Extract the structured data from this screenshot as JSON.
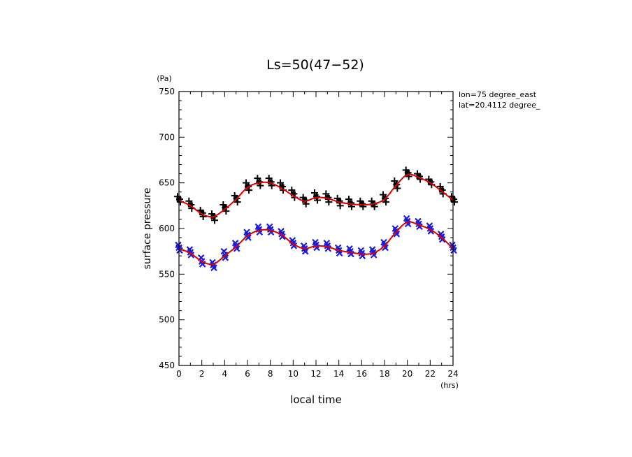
{
  "chart_data": {
    "type": "scatter",
    "title": "Ls=50(47−52)",
    "xlabel": "local time",
    "ylabel": "surface pressure",
    "x_unit": "(hrs)",
    "y_unit": "(Pa)",
    "xlim": [
      0,
      24
    ],
    "ylim": [
      450,
      750
    ],
    "xticks": [
      0,
      2,
      4,
      6,
      8,
      10,
      12,
      14,
      16,
      18,
      20,
      22,
      24
    ],
    "yticks": [
      450,
      500,
      550,
      600,
      650,
      700,
      750
    ],
    "grid": false,
    "annotations": [
      "lon=75 degree_east",
      "lat=20.4112 degree_"
    ],
    "x": [
      0,
      1,
      2,
      3,
      4,
      5,
      6,
      7,
      8,
      9,
      10,
      11,
      12,
      13,
      14,
      15,
      16,
      17,
      18,
      19,
      20,
      21,
      22,
      23,
      24
    ],
    "series": [
      {
        "marker": "square+plus",
        "color": "#000000",
        "values": [
          632,
          626,
          617,
          613,
          623,
          633,
          646,
          651,
          651,
          646,
          638,
          631,
          635,
          634,
          630,
          628,
          627,
          627,
          633,
          648,
          661,
          657,
          651,
          642,
          632
        ],
        "spread": [
          [
            629,
            635
          ],
          [
            622,
            630
          ],
          [
            613,
            620
          ],
          [
            609,
            616
          ],
          [
            619,
            626
          ],
          [
            629,
            636
          ],
          [
            642,
            650
          ],
          [
            647,
            655
          ],
          [
            647,
            655
          ],
          [
            642,
            650
          ],
          [
            634,
            642
          ],
          [
            627,
            634
          ],
          [
            631,
            639
          ],
          [
            629,
            638
          ],
          [
            625,
            633
          ],
          [
            624,
            632
          ],
          [
            624,
            630
          ],
          [
            624,
            630
          ],
          [
            629,
            637
          ],
          [
            644,
            652
          ],
          [
            657,
            664
          ],
          [
            654,
            660
          ],
          [
            648,
            654
          ],
          [
            638,
            646
          ],
          [
            629,
            635
          ]
        ]
      },
      {
        "marker": "x",
        "color": "#1a1adc",
        "values": [
          579,
          574,
          564,
          560,
          571,
          581,
          593,
          599,
          599,
          594,
          584,
          578,
          582,
          581,
          576,
          575,
          573,
          574,
          582,
          597,
          608,
          605,
          600,
          591,
          579
        ],
        "spread": [
          [
            576,
            582
          ],
          [
            571,
            577
          ],
          [
            561,
            568
          ],
          [
            557,
            563
          ],
          [
            568,
            575
          ],
          [
            578,
            584
          ],
          [
            590,
            596
          ],
          [
            596,
            602
          ],
          [
            596,
            602
          ],
          [
            591,
            597
          ],
          [
            581,
            587
          ],
          [
            575,
            581
          ],
          [
            579,
            585
          ],
          [
            578,
            584
          ],
          [
            573,
            579
          ],
          [
            572,
            578
          ],
          [
            570,
            576
          ],
          [
            571,
            577
          ],
          [
            579,
            585
          ],
          [
            594,
            600
          ],
          [
            605,
            611
          ],
          [
            602,
            608
          ],
          [
            597,
            603
          ],
          [
            588,
            594
          ],
          [
            576,
            582
          ]
        ]
      },
      {
        "marker": "line",
        "color": "#dd0000",
        "fit_of_series": 0,
        "values": [
          631,
          625,
          616,
          613,
          621,
          632,
          645,
          650,
          650,
          644,
          636,
          630,
          634,
          633,
          629,
          627,
          626,
          627,
          632,
          647,
          659,
          656,
          650,
          641,
          631
        ]
      },
      {
        "marker": "line",
        "color": "#dd0000",
        "fit_of_series": 1,
        "values": [
          578,
          573,
          564,
          561,
          570,
          580,
          592,
          598,
          598,
          593,
          583,
          578,
          581,
          580,
          576,
          574,
          572,
          573,
          581,
          596,
          607,
          604,
          599,
          590,
          578
        ]
      }
    ]
  }
}
